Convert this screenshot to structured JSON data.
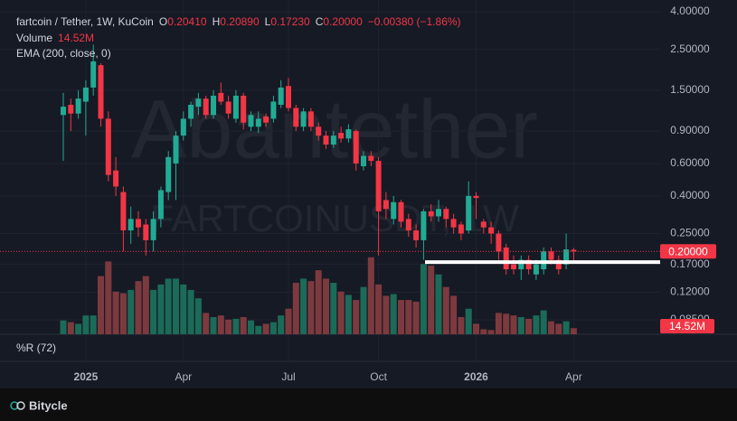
{
  "header": {
    "pair": "fartcoin / Tether, 1W, KuCoin",
    "o": "O",
    "open": "0.20410",
    "h": "H",
    "high": "0.20890",
    "l": "L",
    "low": "0.17230",
    "c": "C",
    "close": "0.20000",
    "change": "−0.00380 (−1.86%)",
    "volume_label": "Volume",
    "volume_value": "14.52M",
    "ema": "EMA (200, close, 0)",
    "wr": "%R (72)",
    "watermark": "Abantether",
    "watermark_symbol": "FARTCOINUSDT, 1W",
    "brand": "Bitycle"
  },
  "chart_data": {
    "type": "candlestick",
    "log_scale": true,
    "grid": true,
    "up_color": "#22ab94",
    "down_color": "#f23645",
    "volume_up_color": "#1b6b58",
    "volume_down_color": "#7d3a3e",
    "categories": [
      null,
      null,
      null,
      "2025",
      null,
      null,
      null,
      null,
      null,
      null,
      null,
      null,
      null,
      null,
      null,
      null,
      "Apr",
      null,
      null,
      null,
      null,
      null,
      null,
      null,
      null,
      null,
      null,
      null,
      null,
      null,
      "Jul",
      null,
      null,
      null,
      null,
      null,
      null,
      null,
      null,
      null,
      null,
      null,
      "Oct",
      null,
      null,
      null,
      null,
      null,
      null,
      null,
      null,
      null,
      null,
      null,
      null,
      "2026",
      null,
      null,
      null,
      null,
      null,
      null,
      null,
      null,
      null,
      null,
      null,
      null,
      "Apr"
    ],
    "open": [
      1.1,
      1.25,
      1.12,
      1.3,
      1.55,
      2.05,
      1.05,
      0.55,
      0.42,
      0.26,
      0.3,
      0.28,
      0.23,
      0.3,
      0.42,
      0.6,
      0.85,
      1.05,
      1.22,
      1.35,
      1.1,
      1.45,
      1.3,
      1.05,
      1.4,
      0.95,
      0.95,
      1.08,
      1.05,
      1.25,
      1.58,
      1.2,
      0.95,
      1.15,
      0.95,
      0.85,
      0.76,
      0.88,
      0.82,
      0.9,
      0.58,
      0.66,
      0.62,
      0.38,
      0.3,
      0.37,
      0.3,
      0.26,
      0.23,
      0.33,
      0.31,
      0.34,
      0.3,
      0.28,
      0.26,
      0.4,
      0.29,
      0.27,
      0.25,
      0.21,
      0.17,
      0.16,
      0.18,
      0.15,
      0.16,
      0.2,
      0.18,
      0.17,
      0.2041
    ],
    "high": [
      1.45,
      1.35,
      1.5,
      1.7,
      2.65,
      2.1,
      1.15,
      0.65,
      0.45,
      0.35,
      0.33,
      0.3,
      0.33,
      0.45,
      0.7,
      0.9,
      1.15,
      1.3,
      1.45,
      1.4,
      1.5,
      1.65,
      1.4,
      1.5,
      1.45,
      1.15,
      1.15,
      1.12,
      1.4,
      1.7,
      1.75,
      1.25,
      1.2,
      1.2,
      1.0,
      0.9,
      0.9,
      0.95,
      0.98,
      0.92,
      0.7,
      0.7,
      0.65,
      0.42,
      0.4,
      0.38,
      0.32,
      0.28,
      0.34,
      0.36,
      0.38,
      0.35,
      0.32,
      0.29,
      0.48,
      0.42,
      0.3,
      0.29,
      0.26,
      0.22,
      0.19,
      0.19,
      0.19,
      0.18,
      0.21,
      0.21,
      0.19,
      0.25,
      0.2089
    ],
    "low": [
      0.62,
      0.9,
      1.05,
      0.85,
      1.4,
      0.95,
      0.48,
      0.4,
      0.2,
      0.22,
      0.24,
      0.19,
      0.2,
      0.27,
      0.38,
      0.38,
      0.8,
      0.95,
      1.1,
      1.05,
      1.05,
      1.25,
      1.05,
      1.0,
      0.92,
      0.9,
      0.88,
      0.95,
      1.0,
      1.2,
      1.15,
      0.9,
      0.9,
      0.9,
      0.8,
      0.72,
      0.73,
      0.78,
      0.78,
      0.55,
      0.55,
      0.58,
      0.19,
      0.3,
      0.28,
      0.27,
      0.24,
      0.21,
      0.18,
      0.29,
      0.29,
      0.27,
      0.25,
      0.23,
      0.25,
      0.3,
      0.25,
      0.22,
      0.18,
      0.15,
      0.15,
      0.14,
      0.15,
      0.14,
      0.15,
      0.17,
      0.15,
      0.16,
      0.1723
    ],
    "close": [
      1.22,
      1.12,
      1.35,
      1.55,
      2.15,
      1.05,
      0.52,
      0.45,
      0.26,
      0.3,
      0.27,
      0.23,
      0.3,
      0.43,
      0.65,
      0.85,
      1.05,
      1.25,
      1.35,
      1.1,
      1.4,
      1.3,
      1.12,
      1.4,
      1.0,
      1.1,
      1.05,
      1.0,
      1.3,
      1.55,
      1.2,
      0.95,
      1.15,
      0.95,
      0.85,
      0.76,
      0.85,
      0.82,
      0.92,
      0.6,
      0.66,
      0.62,
      0.33,
      0.34,
      0.37,
      0.29,
      0.26,
      0.23,
      0.33,
      0.31,
      0.34,
      0.3,
      0.27,
      0.25,
      0.4,
      0.39,
      0.27,
      0.25,
      0.2,
      0.16,
      0.16,
      0.18,
      0.16,
      0.17,
      0.2,
      0.18,
      0.16,
      0.205,
      0.2
    ],
    "volume": [
      33,
      29,
      25,
      45,
      45,
      139,
      174,
      102,
      98,
      106,
      127,
      139,
      106,
      119,
      133,
      133,
      119,
      106,
      86,
      51,
      41,
      45,
      35,
      37,
      41,
      33,
      20,
      25,
      29,
      45,
      61,
      123,
      133,
      127,
      153,
      133,
      123,
      102,
      94,
      82,
      113,
      184,
      119,
      92,
      96,
      82,
      82,
      78,
      168,
      164,
      143,
      113,
      92,
      41,
      61,
      25,
      12,
      10,
      51,
      49,
      45,
      41,
      37,
      45,
      57,
      31,
      25,
      31,
      14.52
    ],
    "volume_ylim": [
      0,
      190
    ],
    "level": 0.175,
    "ylim": [
      0.071,
      4.63
    ],
    "yticks": [
      {
        "value": 4,
        "label": "4.00000"
      },
      {
        "value": 2.5,
        "label": "2.50000"
      },
      {
        "value": 1.5,
        "label": "1.50000"
      },
      {
        "value": 0.9,
        "label": "0.90000"
      },
      {
        "value": 0.6,
        "label": "0.60000"
      },
      {
        "value": 0.4,
        "label": "0.40000"
      },
      {
        "value": 0.25,
        "label": "0.25000"
      },
      {
        "value": 0.17,
        "label": "0.17000"
      },
      {
        "value": 0.12,
        "label": "0.12000"
      },
      {
        "value": 0.085,
        "label": "0.08500"
      }
    ]
  }
}
